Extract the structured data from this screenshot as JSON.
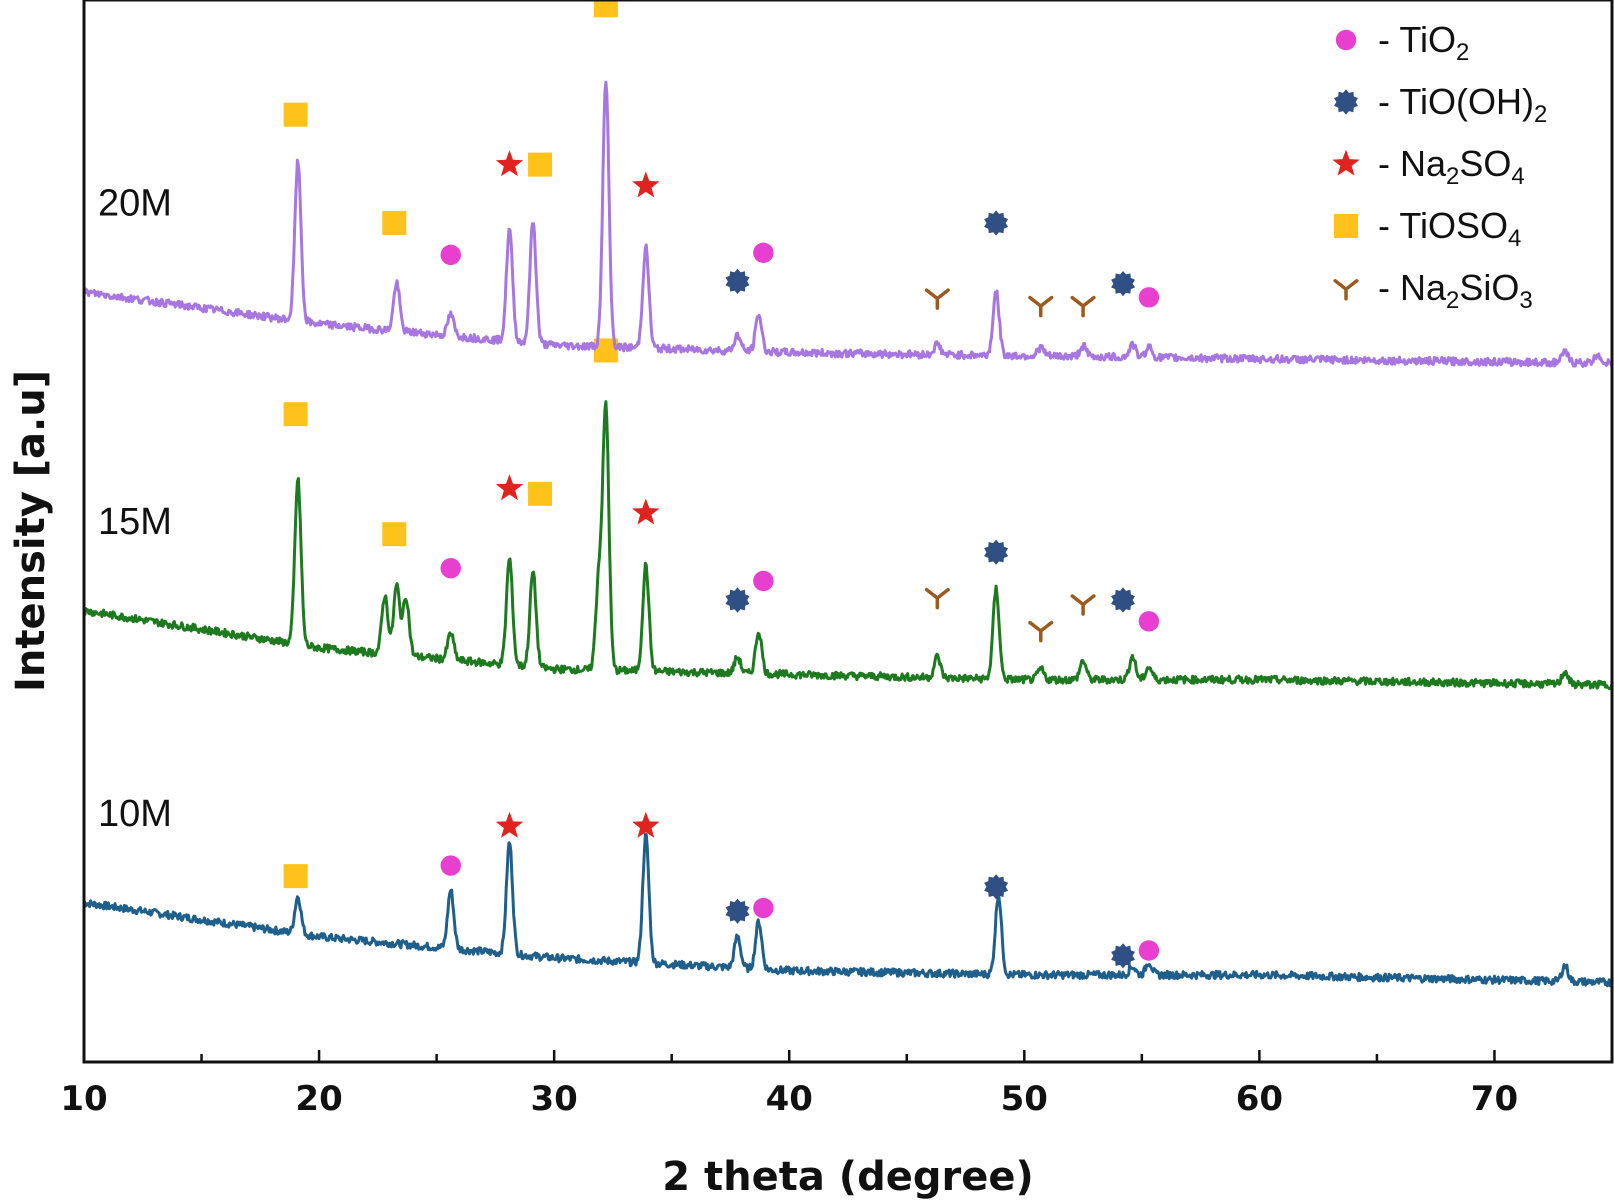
{
  "chart_data": {
    "type": "line",
    "xlabel": "2 theta (degree)",
    "ylabel": "Intensity [a.u]",
    "xlim": [
      10,
      75
    ],
    "ylim": [
      0,
      10
    ],
    "xticks": [
      "10",
      "20",
      "30",
      "40",
      "50",
      "60",
      "70"
    ],
    "xtick_values": [
      10,
      20,
      30,
      40,
      50,
      60,
      70
    ],
    "y_ticks_shown": false,
    "grid": false,
    "legend_position": "top-right",
    "series": [
      {
        "name": "10M",
        "color": "#1f5f8b",
        "baseline": [
          [
            10,
            1.5
          ],
          [
            20,
            1.18
          ],
          [
            30,
            0.98
          ],
          [
            40,
            0.86
          ],
          [
            50,
            0.82
          ],
          [
            60,
            0.82
          ],
          [
            75,
            0.75
          ]
        ],
        "peaks": [
          [
            19.1,
            0.35
          ],
          [
            25.6,
            0.55
          ],
          [
            28.1,
            1.05
          ],
          [
            33.9,
            1.2
          ],
          [
            37.8,
            0.3
          ],
          [
            38.7,
            0.45
          ],
          [
            48.9,
            0.75
          ],
          [
            54.6,
            0.08
          ],
          [
            55.3,
            0.12
          ],
          [
            73.0,
            0.15
          ]
        ],
        "markers": [
          {
            "x": 19.0,
            "y": 1.75,
            "phase": "TiOSO4"
          },
          {
            "x": 25.6,
            "y": 1.85,
            "phase": "TiO2"
          },
          {
            "x": 28.1,
            "y": 2.22,
            "phase": "Na2SO4"
          },
          {
            "x": 33.9,
            "y": 2.22,
            "phase": "Na2SO4"
          },
          {
            "x": 37.8,
            "y": 1.42,
            "phase": "TiO(OH)2"
          },
          {
            "x": 38.9,
            "y": 1.45,
            "phase": "TiO2"
          },
          {
            "x": 48.8,
            "y": 1.65,
            "phase": "TiO(OH)2"
          },
          {
            "x": 54.2,
            "y": 1.0,
            "phase": "TiO(OH)2"
          },
          {
            "x": 55.3,
            "y": 1.05,
            "phase": "TiO2"
          }
        ]
      },
      {
        "name": "15M",
        "color": "#1e7a1e",
        "baseline": [
          [
            10,
            4.25
          ],
          [
            20,
            3.9
          ],
          [
            30,
            3.7
          ],
          [
            40,
            3.65
          ],
          [
            50,
            3.6
          ],
          [
            60,
            3.6
          ],
          [
            75,
            3.55
          ]
        ],
        "peaks": [
          [
            19.1,
            1.55
          ],
          [
            22.8,
            0.55
          ],
          [
            23.3,
            0.65
          ],
          [
            23.7,
            0.55
          ],
          [
            25.6,
            0.25
          ],
          [
            28.1,
            1.0
          ],
          [
            29.1,
            0.9
          ],
          [
            31.9,
            0.85
          ],
          [
            32.2,
            2.45
          ],
          [
            33.9,
            1.0
          ],
          [
            37.8,
            0.15
          ],
          [
            38.7,
            0.4
          ],
          [
            46.3,
            0.2
          ],
          [
            48.8,
            0.85
          ],
          [
            50.7,
            0.1
          ],
          [
            52.5,
            0.18
          ],
          [
            54.6,
            0.22
          ],
          [
            55.3,
            0.12
          ],
          [
            73.0,
            0.12
          ]
        ],
        "markers": [
          {
            "x": 19.0,
            "y": 6.1,
            "phase": "TiOSO4"
          },
          {
            "x": 23.2,
            "y": 4.97,
            "phase": "TiOSO4"
          },
          {
            "x": 25.6,
            "y": 4.65,
            "phase": "TiO2"
          },
          {
            "x": 28.1,
            "y": 5.4,
            "phase": "Na2SO4"
          },
          {
            "x": 29.4,
            "y": 5.35,
            "phase": "TiOSO4"
          },
          {
            "x": 32.2,
            "y": 6.7,
            "phase": "TiOSO4"
          },
          {
            "x": 33.9,
            "y": 5.17,
            "phase": "Na2SO4"
          },
          {
            "x": 37.8,
            "y": 4.35,
            "phase": "TiO(OH)2"
          },
          {
            "x": 38.9,
            "y": 4.53,
            "phase": "TiO2"
          },
          {
            "x": 46.3,
            "y": 4.38,
            "phase": "Na2SiO3"
          },
          {
            "x": 48.8,
            "y": 4.8,
            "phase": "TiO(OH)2"
          },
          {
            "x": 50.7,
            "y": 4.07,
            "phase": "Na2SiO3"
          },
          {
            "x": 52.5,
            "y": 4.32,
            "phase": "Na2SiO3"
          },
          {
            "x": 54.2,
            "y": 4.35,
            "phase": "TiO(OH)2"
          },
          {
            "x": 55.3,
            "y": 4.15,
            "phase": "TiO2"
          }
        ]
      },
      {
        "name": "20M",
        "color": "#a876e0",
        "baseline": [
          [
            10,
            7.25
          ],
          [
            20,
            6.95
          ],
          [
            30,
            6.75
          ],
          [
            40,
            6.68
          ],
          [
            50,
            6.65
          ],
          [
            60,
            6.62
          ],
          [
            75,
            6.58
          ]
        ],
        "peaks": [
          [
            19.1,
            1.5
          ],
          [
            23.3,
            0.45
          ],
          [
            25.6,
            0.2
          ],
          [
            28.1,
            1.05
          ],
          [
            29.1,
            1.15
          ],
          [
            32.2,
            2.5
          ],
          [
            33.9,
            0.95
          ],
          [
            37.8,
            0.15
          ],
          [
            38.7,
            0.35
          ],
          [
            46.3,
            0.1
          ],
          [
            48.8,
            0.6
          ],
          [
            50.7,
            0.08
          ],
          [
            52.5,
            0.1
          ],
          [
            54.6,
            0.12
          ],
          [
            55.3,
            0.1
          ],
          [
            73.0,
            0.1
          ],
          [
            74.4,
            0.08
          ]
        ],
        "markers": [
          {
            "x": 19.0,
            "y": 8.92,
            "phase": "TiOSO4"
          },
          {
            "x": 23.2,
            "y": 7.9,
            "phase": "TiOSO4"
          },
          {
            "x": 25.6,
            "y": 7.6,
            "phase": "TiO2"
          },
          {
            "x": 28.1,
            "y": 8.45,
            "phase": "Na2SO4"
          },
          {
            "x": 29.4,
            "y": 8.45,
            "phase": "TiOSO4"
          },
          {
            "x": 32.2,
            "y": 9.95,
            "phase": "TiOSO4"
          },
          {
            "x": 33.9,
            "y": 8.25,
            "phase": "Na2SO4"
          },
          {
            "x": 37.8,
            "y": 7.35,
            "phase": "TiO(OH)2"
          },
          {
            "x": 38.9,
            "y": 7.62,
            "phase": "TiO2"
          },
          {
            "x": 46.3,
            "y": 7.2,
            "phase": "Na2SiO3"
          },
          {
            "x": 48.8,
            "y": 7.9,
            "phase": "TiO(OH)2"
          },
          {
            "x": 50.7,
            "y": 7.13,
            "phase": "Na2SiO3"
          },
          {
            "x": 52.5,
            "y": 7.13,
            "phase": "Na2SiO3"
          },
          {
            "x": 54.2,
            "y": 7.33,
            "phase": "TiO(OH)2"
          },
          {
            "x": 55.3,
            "y": 7.2,
            "phase": "TiO2"
          }
        ]
      }
    ],
    "legend": [
      {
        "phase": "TiO2",
        "prefix": "- TiO",
        "parts": [
          [
            "TiO",
            false
          ],
          [
            "2",
            true
          ]
        ],
        "marker": "circle",
        "color": "#e83fd1"
      },
      {
        "phase": "TiO(OH)2",
        "parts": [
          [
            "TiO(OH)",
            false
          ],
          [
            "2",
            true
          ]
        ],
        "marker": "gear",
        "color": "#2f4f85"
      },
      {
        "phase": "Na2SO4",
        "parts": [
          [
            "Na",
            false
          ],
          [
            "2",
            true
          ],
          [
            "SO",
            false
          ],
          [
            "4",
            true
          ]
        ],
        "marker": "star",
        "color": "#e0231f"
      },
      {
        "phase": "TiOSO4",
        "parts": [
          [
            "TiOSO",
            false
          ],
          [
            "4",
            true
          ]
        ],
        "marker": "square",
        "color": "#ffc21a"
      },
      {
        "phase": "Na2SiO3",
        "parts": [
          [
            "Na",
            false
          ],
          [
            "2",
            true
          ],
          [
            "SiO",
            false
          ],
          [
            "3",
            true
          ]
        ],
        "marker": "tri",
        "color": "#9b5a1e"
      }
    ]
  }
}
